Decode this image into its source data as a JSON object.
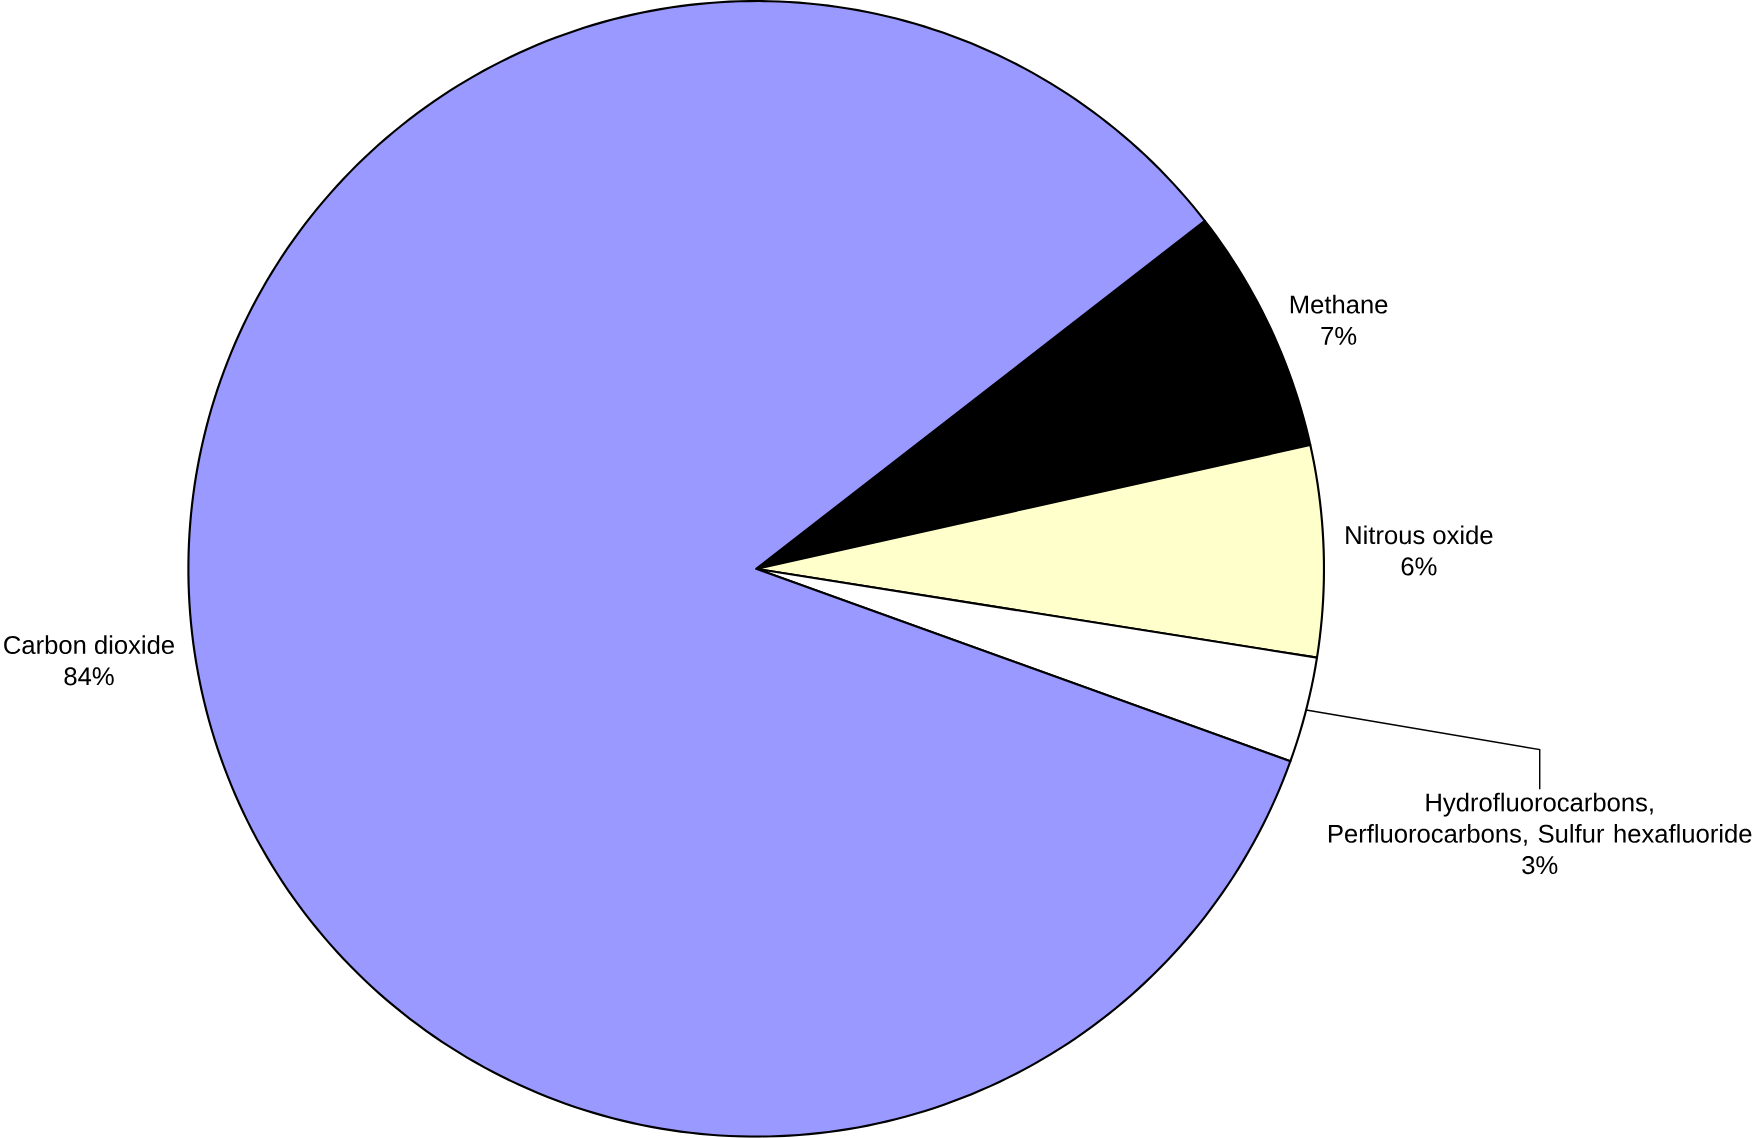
{
  "chart_data": {
    "type": "pie",
    "categories": [
      "Methane",
      "Nitrous oxide",
      "Hydrofluorocarbons, Perfluorocarbons, Sulfur hexafluoride",
      "Carbon dioxide"
    ],
    "values": [
      7,
      6,
      3,
      84
    ],
    "colors": [
      "#000000",
      "#ffffcc",
      "#ffffff",
      "#9999ff"
    ],
    "value_labels": [
      "7%",
      "6%",
      "3%",
      "84%"
    ]
  }
}
